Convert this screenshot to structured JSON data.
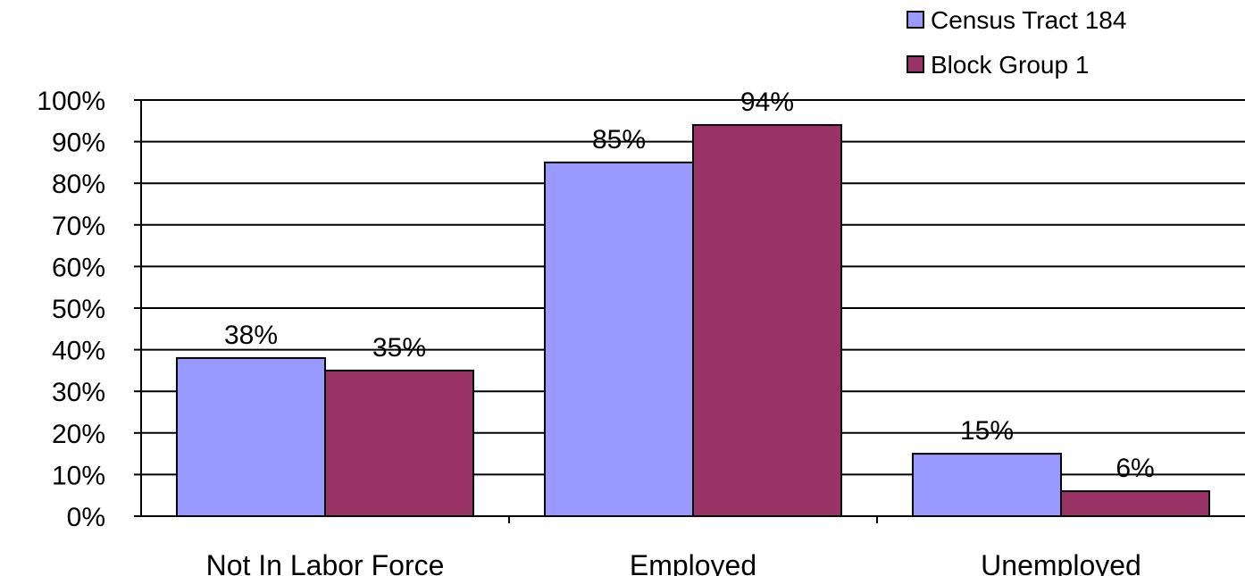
{
  "chart_data": {
    "type": "bar",
    "title": "",
    "xlabel": "",
    "ylabel": "",
    "categories": [
      "Not In Labor Force",
      "Employed",
      "Unemployed"
    ],
    "series": [
      {
        "name": "Census Tract 184",
        "values": [
          38,
          85,
          15
        ],
        "labels": [
          "38%",
          "85%",
          "15%"
        ],
        "color": "#9999ff"
      },
      {
        "name": "Block Group 1",
        "values": [
          35,
          94,
          6
        ],
        "labels": [
          "35%",
          "94%",
          "6%"
        ],
        "color": "#993366"
      }
    ],
    "ylim": [
      0,
      100
    ],
    "yticks": [
      0,
      10,
      20,
      30,
      40,
      50,
      60,
      70,
      80,
      90,
      100
    ],
    "ytick_labels": [
      "0%",
      "10%",
      "20%",
      "30%",
      "40%",
      "50%",
      "60%",
      "70%",
      "80%",
      "90%",
      "100%"
    ],
    "grid": true,
    "legend_position": "top-right"
  }
}
